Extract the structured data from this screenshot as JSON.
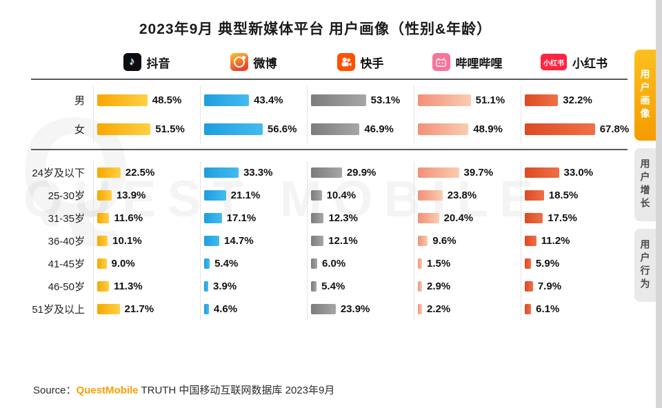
{
  "title": "2023年9月 典型新媒体平台 用户画像（性别&年龄）",
  "watermark": "QUEST MOBILE",
  "watermark_q": "Q",
  "sidebar": {
    "tabs": [
      {
        "label": "用户画像",
        "active": true
      },
      {
        "label": "用户增长",
        "active": false
      },
      {
        "label": "用户行为",
        "active": false
      }
    ]
  },
  "source": {
    "prefix": "Source：",
    "brand": "QuestMobile",
    "suffix": " TRUTH 中国移动互联网数据库 2023年9月"
  },
  "chart_data": {
    "type": "bar",
    "unit": "%",
    "orientation": "horizontal",
    "gender_categories": [
      "男",
      "女"
    ],
    "age_categories": [
      "24岁及以下",
      "25-30岁",
      "31-35岁",
      "36-40岁",
      "41-45岁",
      "46-50岁",
      "51岁及以上"
    ],
    "series": [
      {
        "id": "douyin",
        "name": "抖音",
        "icon": "douyin-icon",
        "color_start": "#f9a602",
        "color_end": "#ffd043",
        "gender": [
          48.5,
          51.5
        ],
        "age": [
          22.5,
          13.9,
          11.6,
          10.1,
          9.0,
          11.3,
          21.7
        ]
      },
      {
        "id": "weibo",
        "name": "微博",
        "icon": "weibo-icon",
        "color_start": "#1e9ede",
        "color_end": "#44bbf0",
        "gender": [
          43.4,
          56.6
        ],
        "age": [
          33.3,
          21.1,
          17.1,
          14.7,
          5.4,
          3.9,
          4.6
        ]
      },
      {
        "id": "kuaishou",
        "name": "快手",
        "icon": "kuaishou-icon",
        "color_start": "#7c7c7c",
        "color_end": "#a6a6a6",
        "gender": [
          53.1,
          46.9
        ],
        "age": [
          29.9,
          10.4,
          12.3,
          12.1,
          6.0,
          5.4,
          23.9
        ]
      },
      {
        "id": "bilibili",
        "name": "哔哩哔哩",
        "icon": "bilibili-icon",
        "color_start": "#f29078",
        "color_end": "#faccb0",
        "gender": [
          51.1,
          48.9
        ],
        "age": [
          39.7,
          23.8,
          20.4,
          9.6,
          1.5,
          2.9,
          2.2
        ]
      },
      {
        "id": "xiaohongshu",
        "name": "小红书",
        "icon": "xiaohongshu-icon",
        "color_start": "#dc4a22",
        "color_end": "#f07048",
        "gender": [
          32.2,
          67.8
        ],
        "age": [
          33.0,
          18.5,
          17.5,
          11.2,
          5.9,
          7.9,
          6.1
        ]
      }
    ]
  }
}
